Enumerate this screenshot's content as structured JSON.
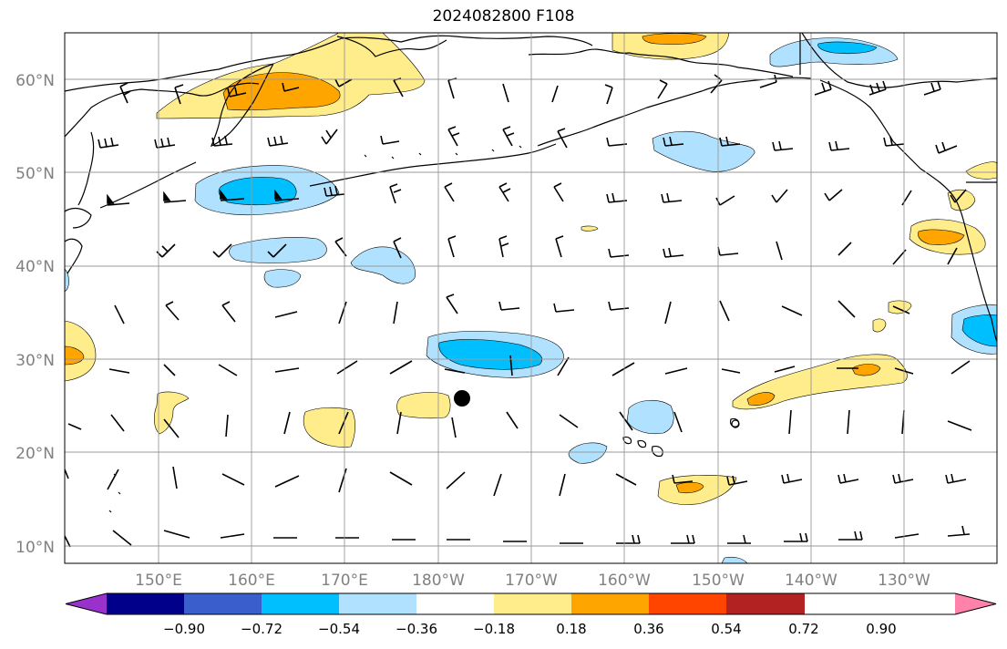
{
  "title": "2024082800 F108",
  "lon_labels": [
    "150°E",
    "160°E",
    "170°E",
    "180°W",
    "170°W",
    "160°W",
    "150°W",
    "140°W",
    "130°W"
  ],
  "lat_labels": [
    "60°N",
    "50°N",
    "40°N",
    "30°N",
    "20°N",
    "10°N"
  ],
  "colorbar": {
    "ticks": [
      "−0.90",
      "−0.72",
      "−0.54",
      "−0.36",
      "−0.18",
      "0.18",
      "0.36",
      "0.54",
      "0.72",
      "0.90"
    ],
    "colors": [
      "#9932CC",
      "#00008B",
      "#3A5FCD",
      "#00BFFF",
      "#B0E2FF",
      "#FFFFFF",
      "#FFEC8B",
      "#FFA500",
      "#FF4500",
      "#B22222",
      "#FF82AB"
    ]
  },
  "fill_colors": {
    "neg_light": "#B0E2FF",
    "neg_mid": "#00BFFF",
    "pos_light": "#FFEC8B",
    "pos_mid": "#FFA500"
  }
}
